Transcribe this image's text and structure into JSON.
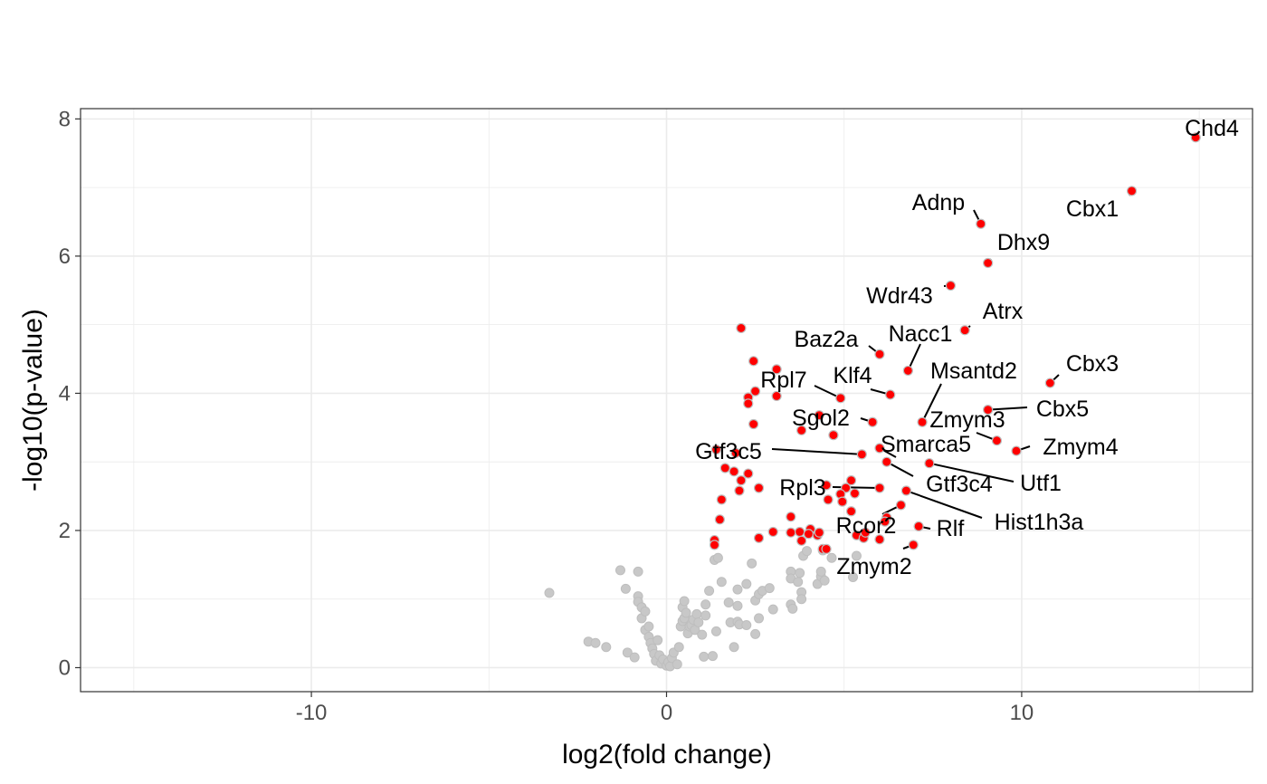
{
  "chart_data": {
    "type": "scatter",
    "title": "",
    "xlabel": "log2(fold change)",
    "ylabel": "-log10(p-value)",
    "xlim": [
      -16.5,
      16.5
    ],
    "ylim": [
      -0.35,
      8.15
    ],
    "x_major_ticks": [
      -10,
      0,
      10
    ],
    "x_minor_ticks": [
      -15,
      -5,
      5,
      15
    ],
    "y_major_ticks": [
      0,
      2,
      4,
      6,
      8
    ],
    "y_minor_ticks": [
      1,
      3,
      5,
      7
    ],
    "x_tick_labels": [
      "-10",
      "0",
      "10"
    ],
    "y_tick_labels": [
      "0",
      "2",
      "4",
      "6",
      "8"
    ],
    "grid": true,
    "legend": "none",
    "colors": {
      "significant": "#ff0000",
      "non_significant": "#c8c8c8",
      "point_outline": "#bebebe",
      "grid": "#ebebeb",
      "panel_border": "#333333"
    },
    "series": [
      {
        "points": [
          [
            -3.3,
            1.09
          ],
          [
            -2.2,
            0.38
          ],
          [
            -2.0,
            0.36
          ],
          [
            -1.7,
            0.3
          ],
          [
            -1.3,
            1.42
          ],
          [
            -1.15,
            1.15
          ],
          [
            -1.1,
            0.22
          ],
          [
            -0.9,
            0.15
          ],
          [
            -0.8,
            1.4
          ],
          [
            -0.8,
            1.04
          ],
          [
            -0.8,
            0.96
          ],
          [
            -0.7,
            0.88
          ],
          [
            -0.7,
            0.72
          ],
          [
            -0.6,
            0.82
          ],
          [
            -0.6,
            0.55
          ],
          [
            -0.5,
            0.6
          ],
          [
            -0.5,
            0.45
          ],
          [
            -0.45,
            0.36
          ],
          [
            -0.4,
            0.28
          ],
          [
            -0.35,
            0.2
          ],
          [
            -0.3,
            0.1
          ],
          [
            -0.25,
            0.4
          ],
          [
            -0.2,
            0.18
          ],
          [
            -0.15,
            0.06
          ],
          [
            -0.1,
            0.12
          ],
          [
            0.0,
            0.03
          ],
          [
            0.05,
            0.08
          ],
          [
            0.1,
            0.02
          ],
          [
            0.15,
            0.14
          ],
          [
            0.2,
            0.22
          ],
          [
            0.3,
            0.05
          ],
          [
            0.35,
            0.3
          ],
          [
            0.4,
            0.6
          ],
          [
            0.45,
            0.68
          ],
          [
            0.5,
            0.72
          ],
          [
            0.45,
            0.88
          ],
          [
            0.5,
            0.97
          ],
          [
            0.55,
            0.8
          ],
          [
            0.6,
            0.5
          ],
          [
            0.65,
            0.6
          ],
          [
            0.7,
            0.62
          ],
          [
            0.75,
            0.7
          ],
          [
            0.8,
            0.55
          ],
          [
            0.85,
            0.78
          ],
          [
            0.9,
            0.66
          ],
          [
            1.0,
            0.48
          ],
          [
            1.05,
            0.16
          ],
          [
            1.1,
            0.92
          ],
          [
            1.1,
            0.76
          ],
          [
            1.2,
            1.12
          ],
          [
            1.3,
            0.17
          ],
          [
            1.35,
            1.57
          ],
          [
            1.45,
            1.6
          ],
          [
            1.4,
            0.53
          ],
          [
            1.55,
            1.25
          ],
          [
            1.75,
            0.95
          ],
          [
            1.8,
            0.66
          ],
          [
            1.9,
            0.3
          ],
          [
            2.0,
            1.14
          ],
          [
            2.0,
            0.9
          ],
          [
            2.0,
            0.67
          ],
          [
            2.05,
            0.63
          ],
          [
            2.25,
            0.62
          ],
          [
            2.25,
            1.22
          ],
          [
            2.4,
            1.52
          ],
          [
            2.5,
            0.49
          ],
          [
            2.5,
            0.98
          ],
          [
            2.6,
            1.07
          ],
          [
            2.7,
            1.12
          ],
          [
            2.9,
            1.16
          ],
          [
            2.6,
            0.72
          ],
          [
            3.0,
            0.85
          ],
          [
            3.5,
            1.4
          ],
          [
            3.5,
            1.3
          ],
          [
            3.5,
            0.92
          ],
          [
            3.55,
            0.86
          ],
          [
            3.7,
            1.25
          ],
          [
            3.75,
            1.38
          ],
          [
            3.8,
            1.1
          ],
          [
            3.8,
            1.0
          ],
          [
            3.85,
            1.63
          ],
          [
            3.95,
            1.7
          ],
          [
            4.25,
            1.22
          ],
          [
            4.35,
            1.33
          ],
          [
            4.35,
            1.4
          ],
          [
            4.4,
            1.71
          ],
          [
            4.45,
            1.27
          ],
          [
            4.65,
            1.6
          ],
          [
            5.25,
            1.32
          ],
          [
            5.35,
            1.63
          ]
        ]
      },
      {
        "points": [
          [
            14.9,
            7.73
          ],
          [
            13.1,
            6.95
          ],
          [
            8.85,
            6.47
          ],
          [
            9.05,
            5.9
          ],
          [
            8.0,
            5.57
          ],
          [
            8.4,
            4.92
          ],
          [
            2.1,
            4.95
          ],
          [
            6.0,
            4.57
          ],
          [
            6.8,
            4.33
          ],
          [
            2.45,
            4.47
          ],
          [
            3.1,
            4.35
          ],
          [
            2.3,
            3.94
          ],
          [
            3.1,
            3.96
          ],
          [
            2.5,
            4.03
          ],
          [
            4.9,
            3.93
          ],
          [
            6.3,
            3.98
          ],
          [
            10.8,
            4.15
          ],
          [
            9.05,
            3.76
          ],
          [
            2.45,
            3.55
          ],
          [
            5.8,
            3.58
          ],
          [
            3.8,
            3.46
          ],
          [
            4.3,
            3.68
          ],
          [
            4.7,
            3.39
          ],
          [
            2.3,
            3.85
          ],
          [
            7.2,
            3.58
          ],
          [
            9.3,
            3.31
          ],
          [
            9.85,
            3.16
          ],
          [
            1.4,
            3.18
          ],
          [
            1.95,
            3.13
          ],
          [
            5.5,
            3.11
          ],
          [
            6.0,
            3.2
          ],
          [
            6.2,
            3.0
          ],
          [
            7.4,
            2.98
          ],
          [
            1.65,
            2.91
          ],
          [
            1.9,
            2.86
          ],
          [
            2.3,
            2.83
          ],
          [
            2.1,
            2.73
          ],
          [
            2.6,
            2.62
          ],
          [
            2.05,
            2.58
          ],
          [
            1.55,
            2.45
          ],
          [
            4.5,
            2.66
          ],
          [
            5.05,
            2.62
          ],
          [
            5.2,
            2.73
          ],
          [
            4.9,
            2.53
          ],
          [
            5.3,
            2.54
          ],
          [
            6.0,
            2.62
          ],
          [
            4.55,
            2.45
          ],
          [
            4.95,
            2.42
          ],
          [
            5.2,
            2.28
          ],
          [
            6.2,
            2.19
          ],
          [
            6.6,
            2.37
          ],
          [
            6.75,
            2.58
          ],
          [
            1.5,
            2.16
          ],
          [
            3.5,
            2.2
          ],
          [
            3.5,
            1.97
          ],
          [
            3.0,
            1.98
          ],
          [
            2.6,
            1.89
          ],
          [
            1.35,
            1.86
          ],
          [
            1.35,
            1.79
          ],
          [
            3.75,
            1.98
          ],
          [
            3.8,
            1.85
          ],
          [
            4.05,
            2.02
          ],
          [
            4.0,
            1.95
          ],
          [
            4.25,
            1.93
          ],
          [
            4.3,
            1.97
          ],
          [
            5.35,
            1.93
          ],
          [
            5.55,
            1.89
          ],
          [
            5.6,
            1.97
          ],
          [
            6.0,
            1.87
          ],
          [
            6.15,
            2.13
          ],
          [
            7.1,
            2.06
          ],
          [
            6.95,
            1.79
          ],
          [
            4.4,
            1.73
          ],
          [
            4.5,
            1.73
          ]
        ]
      }
    ],
    "labels": [
      {
        "text": "Chd4",
        "x": 14.9,
        "y": 7.73
      },
      {
        "text": "Cbx1",
        "x": 13.1,
        "y": 6.95
      },
      {
        "text": "Adnp",
        "x": 8.85,
        "y": 6.47
      },
      {
        "text": "Dhx9",
        "x": 9.05,
        "y": 5.9
      },
      {
        "text": "Wdr43",
        "x": 8.0,
        "y": 5.57
      },
      {
        "text": "Atrx",
        "x": 8.4,
        "y": 4.92
      },
      {
        "text": "Baz2a",
        "x": 6.0,
        "y": 4.57
      },
      {
        "text": "Nacc1",
        "x": 6.8,
        "y": 4.33
      },
      {
        "text": "Cbx3",
        "x": 10.8,
        "y": 4.15
      },
      {
        "text": "Msantd2",
        "x": 7.2,
        "y": 3.58
      },
      {
        "text": "Rpl7",
        "x": 4.9,
        "y": 3.93
      },
      {
        "text": "Klf4",
        "x": 6.3,
        "y": 3.98
      },
      {
        "text": "Cbx5",
        "x": 9.05,
        "y": 3.76
      },
      {
        "text": "Sgol2",
        "x": 5.8,
        "y": 3.58
      },
      {
        "text": "Zmym3",
        "x": 9.3,
        "y": 3.31
      },
      {
        "text": "Zmym4",
        "x": 9.85,
        "y": 3.16
      },
      {
        "text": "Gtf3c5",
        "x": 5.5,
        "y": 3.11
      },
      {
        "text": "Smarca5",
        "x": 6.0,
        "y": 3.2
      },
      {
        "text": "Utf1",
        "x": 7.4,
        "y": 2.98
      },
      {
        "text": "Gtf3c4",
        "x": 6.2,
        "y": 3.0
      },
      {
        "text": "Rpl3",
        "x": 6.0,
        "y": 2.62
      },
      {
        "text": "Hist1h3a",
        "x": 6.75,
        "y": 2.58
      },
      {
        "text": "Rcor2",
        "x": 6.6,
        "y": 2.37
      },
      {
        "text": "Rlf",
        "x": 7.1,
        "y": 2.06
      },
      {
        "text": "Zmym2",
        "x": 6.95,
        "y": 1.79
      }
    ]
  }
}
